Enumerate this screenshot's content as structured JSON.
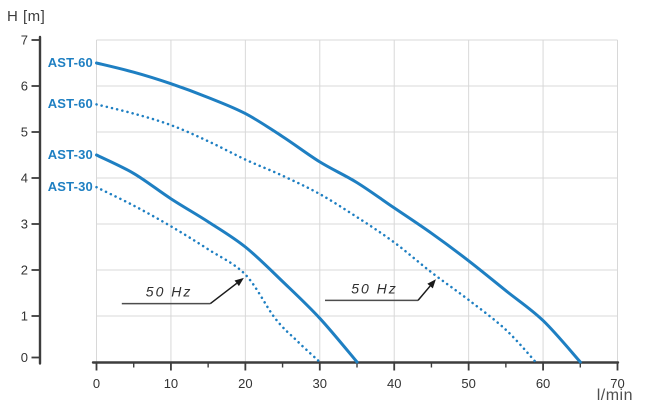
{
  "chart_data": {
    "type": "line",
    "title": "",
    "xlabel": "l/min",
    "ylabel": "H [m]",
    "xlim": [
      0,
      70
    ],
    "ylim": [
      0,
      7
    ],
    "x_major_ticks": [
      0,
      10,
      20,
      30,
      40,
      50,
      60,
      70
    ],
    "x_minor_ticks": [
      5,
      15,
      25,
      35,
      45,
      55,
      65
    ],
    "y_ticks": [
      7,
      6,
      5,
      4,
      3,
      2,
      1,
      0
    ],
    "grid": "on",
    "legend_position": "curve-start-labels-left",
    "series": [
      {
        "id": "ast60-solid",
        "name": "AST-60 (solid curve)",
        "label": "AST-60",
        "line_style": "solid",
        "points": [
          [
            0,
            6.5
          ],
          [
            5,
            6.3
          ],
          [
            10,
            6.05
          ],
          [
            15,
            5.75
          ],
          [
            20,
            5.4
          ],
          [
            25,
            4.9
          ],
          [
            30,
            4.35
          ],
          [
            35,
            3.9
          ],
          [
            40,
            3.35
          ],
          [
            45,
            2.8
          ],
          [
            50,
            2.2
          ],
          [
            55,
            1.55
          ],
          [
            60,
            0.9
          ],
          [
            65,
            0
          ]
        ]
      },
      {
        "id": "ast60-dotted",
        "name": "AST-60 (dotted 50 Hz curve)",
        "label": "AST-60",
        "line_style": "dotted",
        "points": [
          [
            0,
            5.6
          ],
          [
            5,
            5.4
          ],
          [
            10,
            5.15
          ],
          [
            15,
            4.8
          ],
          [
            20,
            4.4
          ],
          [
            25,
            4.05
          ],
          [
            30,
            3.65
          ],
          [
            35,
            3.15
          ],
          [
            40,
            2.6
          ],
          [
            45,
            1.95
          ],
          [
            50,
            1.35
          ],
          [
            55,
            0.7
          ],
          [
            59,
            0
          ]
        ]
      },
      {
        "id": "ast30-solid",
        "name": "AST-30 (solid curve)",
        "label": "AST-30",
        "line_style": "solid",
        "points": [
          [
            0,
            4.5
          ],
          [
            5,
            4.1
          ],
          [
            10,
            3.55
          ],
          [
            15,
            3.05
          ],
          [
            20,
            2.5
          ],
          [
            25,
            1.75
          ],
          [
            30,
            0.95
          ],
          [
            35,
            0
          ]
        ]
      },
      {
        "id": "ast30-dotted",
        "name": "AST-30 (dotted 50 Hz curve)",
        "label": "AST-30",
        "line_style": "dotted",
        "points": [
          [
            0,
            3.8
          ],
          [
            5,
            3.4
          ],
          [
            10,
            2.95
          ],
          [
            15,
            2.45
          ],
          [
            20,
            1.9
          ],
          [
            24,
            0.95
          ],
          [
            27,
            0.45
          ],
          [
            30,
            0
          ]
        ]
      }
    ],
    "annotations": [
      {
        "text": "50 Hz",
        "underline_x": [
          3.4,
          15.3
        ],
        "underline_h": 1.27,
        "arrow_tip": [
          19.8,
          1.83
        ],
        "points_to": "ast30-dotted"
      },
      {
        "text": "50 Hz",
        "underline_x": [
          30.7,
          43.2
        ],
        "underline_h": 1.34,
        "arrow_tip": [
          45.6,
          1.8
        ],
        "points_to": "ast60-dotted"
      }
    ],
    "colors": {
      "curve": "#1e7fc2",
      "curve_label": "#1e7fc2",
      "axis": "#3d3d3d",
      "grid": "#d8d8d8",
      "tick_text": "#333333",
      "annotation_text": "#2f2f2f",
      "annotation_line": "#4d4d4d",
      "background": "#ffffff"
    }
  }
}
